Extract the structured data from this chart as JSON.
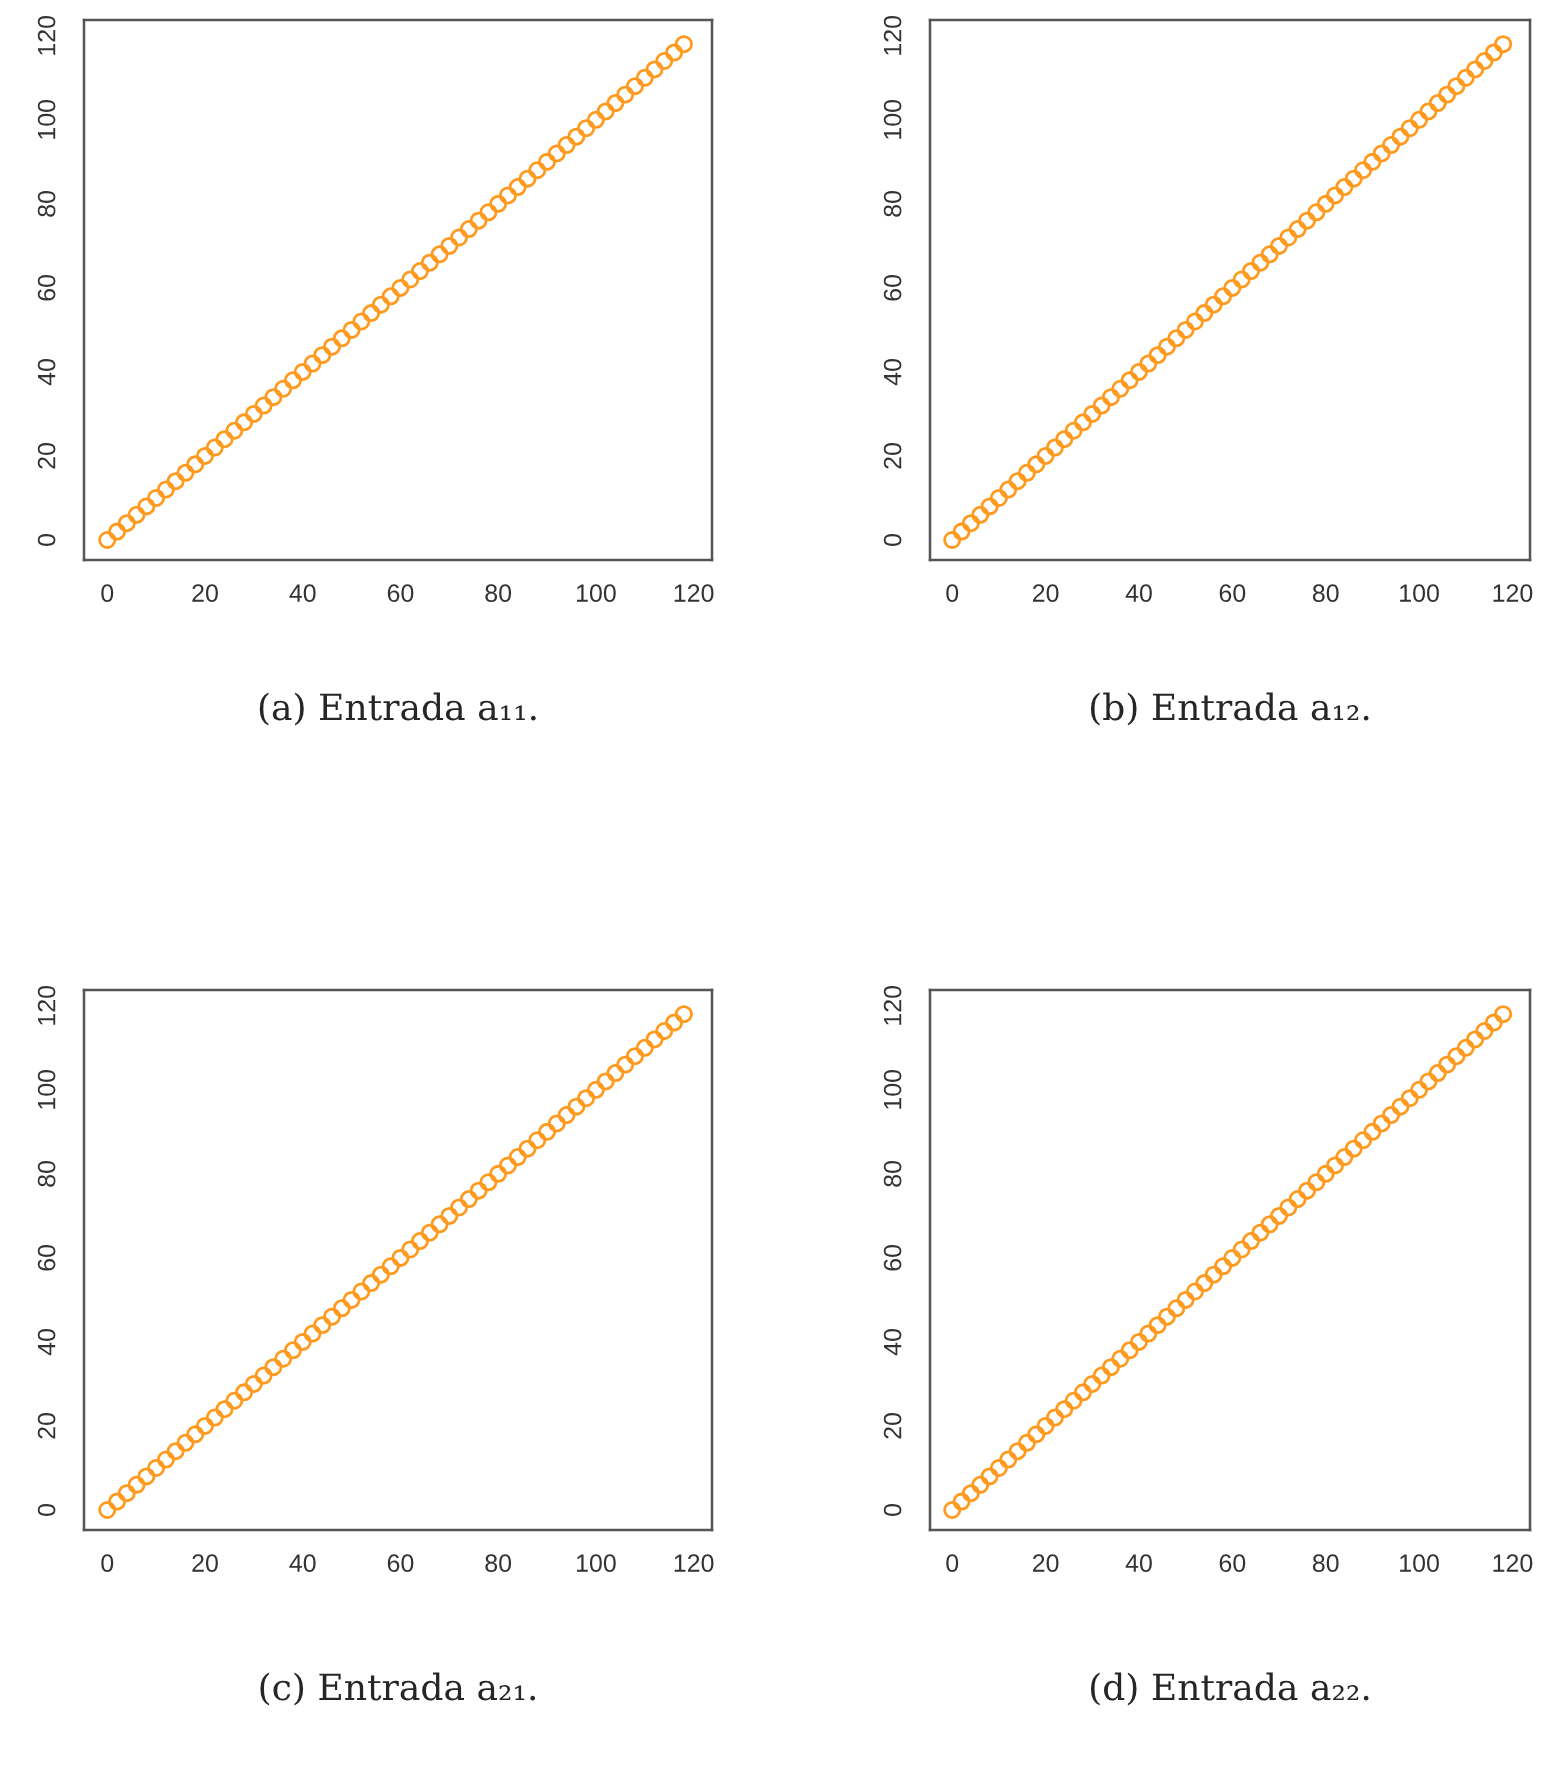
{
  "chart_data": [
    {
      "type": "scatter",
      "xlim": [
        -4.76,
        123.76
      ],
      "ylim": [
        -4.76,
        123.76
      ],
      "xticks": [
        0,
        20,
        40,
        60,
        80,
        100,
        120
      ],
      "yticks": [
        0,
        20,
        40,
        60,
        80,
        100,
        120
      ],
      "grid": false,
      "marker": "circle",
      "annotations": [
        "(a) Entrada a₁₁."
      ],
      "series": [
        {
          "color": "#ff9a1f",
          "x": [
            0,
            2,
            4,
            6,
            8,
            10,
            12,
            14,
            16,
            18,
            20,
            22,
            24,
            26,
            28,
            30,
            32,
            34,
            36,
            38,
            40,
            42,
            44,
            46,
            48,
            50,
            52,
            54,
            56,
            58,
            60,
            62,
            64,
            66,
            68,
            70,
            72,
            74,
            76,
            78,
            80,
            82,
            84,
            86,
            88,
            90,
            92,
            94,
            96,
            98,
            100,
            102,
            104,
            106,
            108,
            110,
            112,
            114,
            116,
            118
          ],
          "values": [
            0,
            2,
            4,
            6,
            8,
            10,
            12,
            14,
            16,
            18,
            20,
            22,
            24,
            26,
            28,
            30,
            32,
            34,
            36,
            38,
            40,
            42,
            44,
            46,
            48,
            50,
            52,
            54,
            56,
            58,
            60,
            62,
            64,
            66,
            68,
            70,
            72,
            74,
            76,
            78,
            80,
            82,
            84,
            86,
            88,
            90,
            92,
            94,
            96,
            98,
            100,
            102,
            104,
            106,
            108,
            110,
            112,
            114,
            116,
            118
          ]
        }
      ]
    },
    {
      "type": "scatter",
      "xlim": [
        -4.76,
        123.76
      ],
      "ylim": [
        -4.76,
        123.76
      ],
      "xticks": [
        0,
        20,
        40,
        60,
        80,
        100,
        120
      ],
      "yticks": [
        0,
        20,
        40,
        60,
        80,
        100,
        120
      ],
      "grid": false,
      "marker": "circle",
      "annotations": [
        "(b) Entrada a₁₂."
      ],
      "series": [
        {
          "color": "#ff9a1f",
          "x": [
            0,
            2,
            4,
            6,
            8,
            10,
            12,
            14,
            16,
            18,
            20,
            22,
            24,
            26,
            28,
            30,
            32,
            34,
            36,
            38,
            40,
            42,
            44,
            46,
            48,
            50,
            52,
            54,
            56,
            58,
            60,
            62,
            64,
            66,
            68,
            70,
            72,
            74,
            76,
            78,
            80,
            82,
            84,
            86,
            88,
            90,
            92,
            94,
            96,
            98,
            100,
            102,
            104,
            106,
            108,
            110,
            112,
            114,
            116,
            118
          ],
          "values": [
            0,
            2,
            4,
            6,
            8,
            10,
            12,
            14,
            16,
            18,
            20,
            22,
            24,
            26,
            28,
            30,
            32,
            34,
            36,
            38,
            40,
            42,
            44,
            46,
            48,
            50,
            52,
            54,
            56,
            58,
            60,
            62,
            64,
            66,
            68,
            70,
            72,
            74,
            76,
            78,
            80,
            82,
            84,
            86,
            88,
            90,
            92,
            94,
            96,
            98,
            100,
            102,
            104,
            106,
            108,
            110,
            112,
            114,
            116,
            118
          ]
        }
      ]
    },
    {
      "type": "scatter",
      "xlim": [
        -4.76,
        123.76
      ],
      "ylim": [
        -4.76,
        123.76
      ],
      "xticks": [
        0,
        20,
        40,
        60,
        80,
        100,
        120
      ],
      "yticks": [
        0,
        20,
        40,
        60,
        80,
        100,
        120
      ],
      "grid": false,
      "marker": "circle",
      "annotations": [
        "(c) Entrada a₂₁."
      ],
      "series": [
        {
          "color": "#ff9a1f",
          "x": [
            0,
            2,
            4,
            6,
            8,
            10,
            12,
            14,
            16,
            18,
            20,
            22,
            24,
            26,
            28,
            30,
            32,
            34,
            36,
            38,
            40,
            42,
            44,
            46,
            48,
            50,
            52,
            54,
            56,
            58,
            60,
            62,
            64,
            66,
            68,
            70,
            72,
            74,
            76,
            78,
            80,
            82,
            84,
            86,
            88,
            90,
            92,
            94,
            96,
            98,
            100,
            102,
            104,
            106,
            108,
            110,
            112,
            114,
            116,
            118
          ],
          "values": [
            0,
            2,
            4,
            6,
            8,
            10,
            12,
            14,
            16,
            18,
            20,
            22,
            24,
            26,
            28,
            30,
            32,
            34,
            36,
            38,
            40,
            42,
            44,
            46,
            48,
            50,
            52,
            54,
            56,
            58,
            60,
            62,
            64,
            66,
            68,
            70,
            72,
            74,
            76,
            78,
            80,
            82,
            84,
            86,
            88,
            90,
            92,
            94,
            96,
            98,
            100,
            102,
            104,
            106,
            108,
            110,
            112,
            114,
            116,
            118
          ]
        }
      ]
    },
    {
      "type": "scatter",
      "xlim": [
        -4.76,
        123.76
      ],
      "ylim": [
        -4.76,
        123.76
      ],
      "xticks": [
        0,
        20,
        40,
        60,
        80,
        100,
        120
      ],
      "yticks": [
        0,
        20,
        40,
        60,
        80,
        100,
        120
      ],
      "grid": false,
      "marker": "circle",
      "annotations": [
        "(d) Entrada a₂₂."
      ],
      "series": [
        {
          "color": "#ff9a1f",
          "x": [
            0,
            2,
            4,
            6,
            8,
            10,
            12,
            14,
            16,
            18,
            20,
            22,
            24,
            26,
            28,
            30,
            32,
            34,
            36,
            38,
            40,
            42,
            44,
            46,
            48,
            50,
            52,
            54,
            56,
            58,
            60,
            62,
            64,
            66,
            68,
            70,
            72,
            74,
            76,
            78,
            80,
            82,
            84,
            86,
            88,
            90,
            92,
            94,
            96,
            98,
            100,
            102,
            104,
            106,
            108,
            110,
            112,
            114,
            116,
            118
          ],
          "values": [
            0,
            2,
            4,
            6,
            8,
            10,
            12,
            14,
            16,
            18,
            20,
            22,
            24,
            26,
            28,
            30,
            32,
            34,
            36,
            38,
            40,
            42,
            44,
            46,
            48,
            50,
            52,
            54,
            56,
            58,
            60,
            62,
            64,
            66,
            68,
            70,
            72,
            74,
            76,
            78,
            80,
            82,
            84,
            86,
            88,
            90,
            92,
            94,
            96,
            98,
            100,
            102,
            104,
            106,
            108,
            110,
            112,
            114,
            116,
            118
          ]
        }
      ]
    }
  ]
}
